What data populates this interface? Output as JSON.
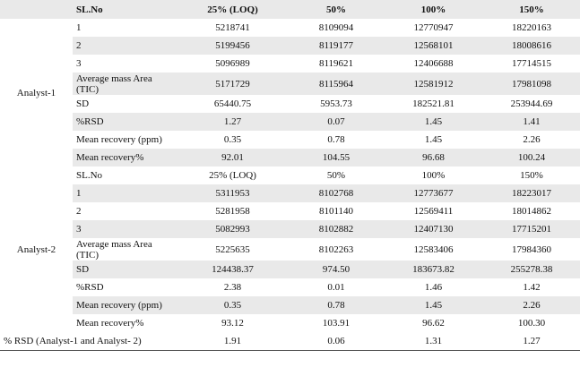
{
  "header": [
    "SL.No",
    "25% (LOQ)",
    "50%",
    "100%",
    "150%"
  ],
  "analyst1": {
    "label": "Analyst-1",
    "rows": [
      [
        "1",
        "5218741",
        "8109094",
        "12770947",
        "18220163"
      ],
      [
        "2",
        "5199456",
        "8119177",
        "12568101",
        "18008616"
      ],
      [
        "3",
        "5096989",
        "8119621",
        "12406688",
        "17714515"
      ],
      [
        "Average mass Area (TIC)",
        "5171729",
        "8115964",
        "12581912",
        "17981098"
      ],
      [
        "SD",
        "65440.75",
        "5953.73",
        "182521.81",
        "253944.69"
      ],
      [
        "%RSD",
        "1.27",
        "0.07",
        "1.45",
        "1.41"
      ],
      [
        "Mean recovery (ppm)",
        "0.35",
        "0.78",
        "1.45",
        "2.26"
      ],
      [
        "Mean recovery%",
        "92.01",
        "104.55",
        "96.68",
        "100.24"
      ]
    ]
  },
  "analyst2": {
    "label": "Analyst-2",
    "rows": [
      [
        "SL.No",
        "25% (LOQ)",
        "50%",
        "100%",
        "150%"
      ],
      [
        "1",
        "5311953",
        "8102768",
        "12773677",
        "18223017"
      ],
      [
        "2",
        "5281958",
        "8101140",
        "12569411",
        "18014862"
      ],
      [
        "3",
        "5082993",
        "8102882",
        "12407130",
        "17715201"
      ],
      [
        "Average mass Area (TIC)",
        "5225635",
        "8102263",
        "12583406",
        "17984360"
      ],
      [
        "SD",
        "124438.37",
        "974.50",
        "183673.82",
        "255278.38"
      ],
      [
        "%RSD",
        "2.38",
        "0.01",
        "1.46",
        "1.42"
      ],
      [
        "Mean recovery (ppm)",
        "0.35",
        "0.78",
        "1.45",
        "2.26"
      ],
      [
        "Mean recovery%",
        "93.12",
        "103.91",
        "96.62",
        "100.30"
      ]
    ]
  },
  "footer": {
    "label": "% RSD (Analyst-1 and Analyst- 2)",
    "values": [
      "1.91",
      "0.06",
      "1.31",
      "1.27"
    ]
  }
}
